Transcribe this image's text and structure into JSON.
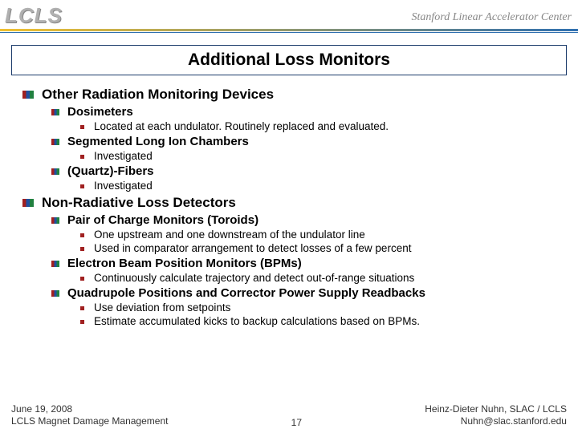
{
  "header": {
    "logo_left": "LCLS",
    "logo_right": "Stanford Linear Accelerator Center"
  },
  "title": "Additional Loss Monitors",
  "sections": [
    {
      "label": "Other Radiation Monitoring Devices",
      "items": [
        {
          "label": "Dosimeters",
          "subs": [
            "Located at each undulator. Routinely replaced and evaluated."
          ]
        },
        {
          "label": "Segmented Long Ion Chambers",
          "subs": [
            "Investigated"
          ]
        },
        {
          "label": "(Quartz)-Fibers",
          "subs": [
            "Investigated"
          ]
        }
      ]
    },
    {
      "label": "Non-Radiative Loss Detectors",
      "items": [
        {
          "label": "Pair of Charge Monitors (Toroids)",
          "subs": [
            "One upstream and one downstream of the undulator line",
            "Used in comparator arrangement to detect losses of a few percent"
          ]
        },
        {
          "label": "Electron Beam Position Monitors (BPMs)",
          "subs": [
            "Continuously calculate trajectory and detect out-of-range situations"
          ]
        },
        {
          "label": "Quadrupole Positions and Corrector Power Supply Readbacks",
          "subs": [
            "Use deviation from setpoints",
            "Estimate accumulated kicks to backup calculations based on BPMs."
          ]
        }
      ]
    }
  ],
  "footer": {
    "date": "June 19, 2008",
    "subtitle": "LCLS Magnet Damage Management",
    "page": "17",
    "author": "Heinz-Dieter Nuhn, SLAC / LCLS",
    "email": "Nuhn@slac.stanford.edu"
  },
  "colors": {
    "marker_red": "#a02020",
    "marker_blue": "#2050a0",
    "marker_green": "#208040",
    "title_border": "#1a3a6a",
    "accent_yellow": "#f0c030",
    "accent_blue": "#3070b0"
  }
}
